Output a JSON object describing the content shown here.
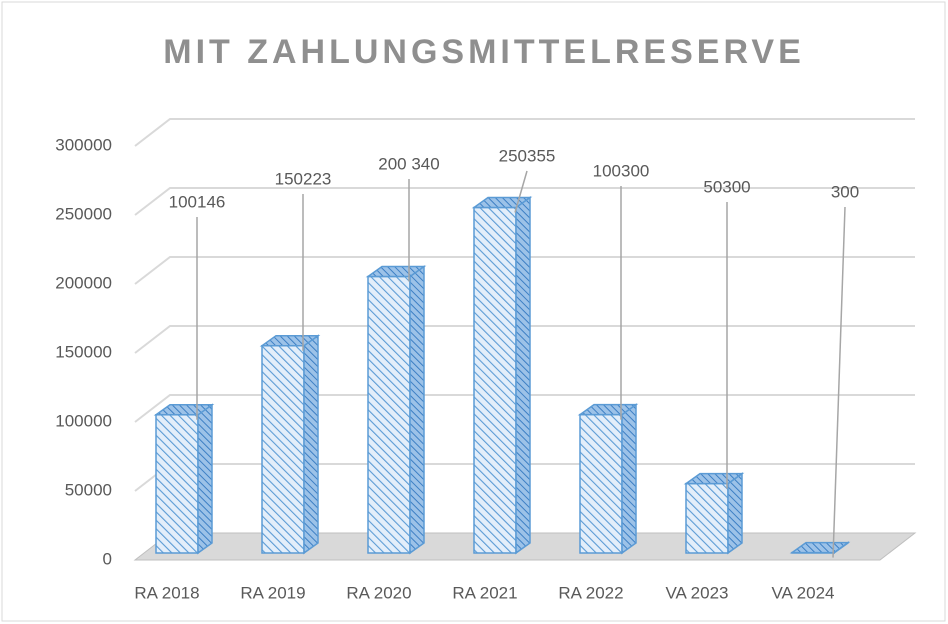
{
  "chart_data": {
    "type": "bar",
    "title": "MIT ZAHLUNGSMITTELRESERVE",
    "categories": [
      "RA 2018",
      "RA 2019",
      "RA 2020",
      "RA 2021",
      "RA 2022",
      "VA 2023",
      "VA 2024"
    ],
    "values": [
      100146,
      150223,
      200340,
      250355,
      100300,
      50300,
      300
    ],
    "value_labels": [
      "100146",
      "150223",
      "200 340",
      "250355",
      "100300",
      "50300",
      "300"
    ],
    "ylim": [
      0,
      300000
    ],
    "yticks": [
      0,
      50000,
      100000,
      150000,
      200000,
      250000,
      300000
    ],
    "color": "#5b9bd5",
    "grid": true
  }
}
